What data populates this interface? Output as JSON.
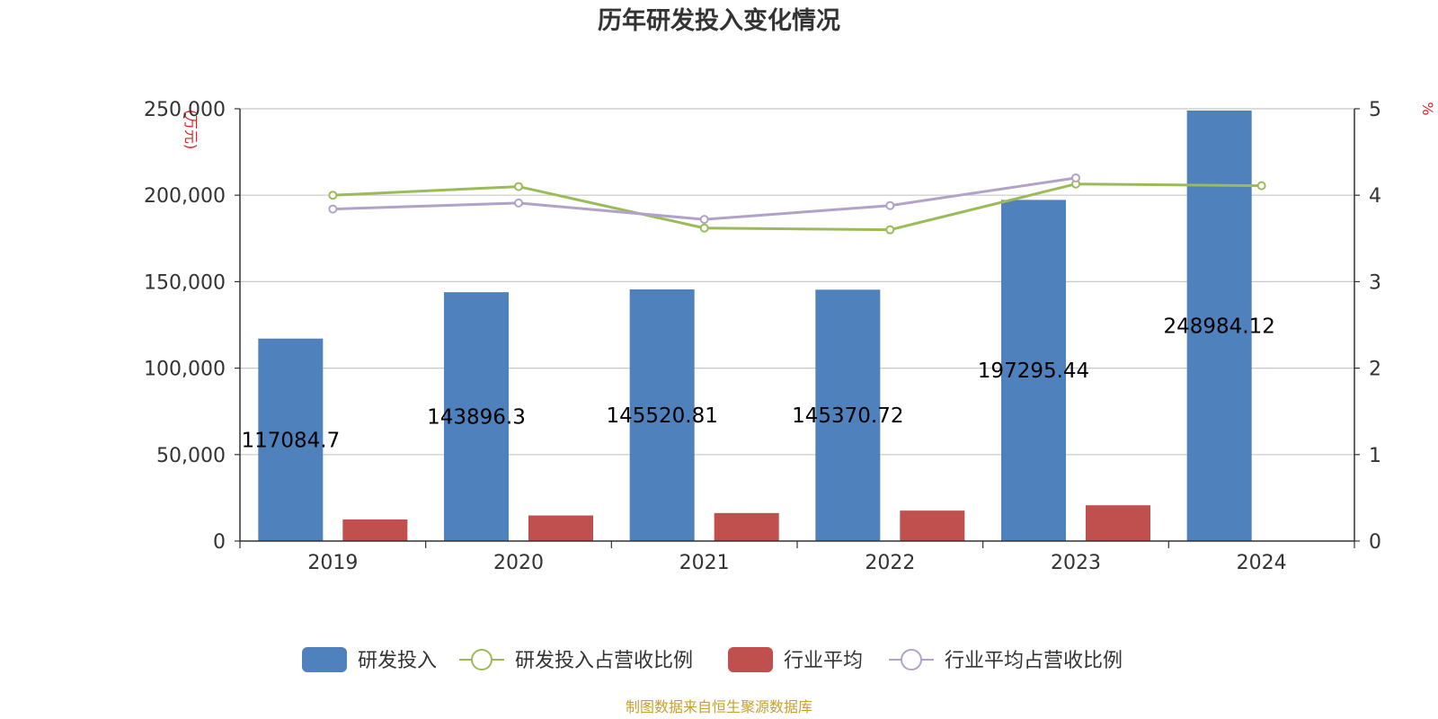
{
  "chart_data": {
    "type": "bar",
    "title": "历年研发投入变化情况",
    "y_left_unit_label": "(万元)",
    "y_right_unit_label": "%",
    "categories": [
      "2019",
      "2020",
      "2021",
      "2022",
      "2023",
      "2024"
    ],
    "y_left_ticks": [
      "0",
      "50,000",
      "100,000",
      "150,000",
      "200,000",
      "250,000"
    ],
    "y_right_ticks": [
      "0",
      "1",
      "2",
      "3",
      "4",
      "5"
    ],
    "ylim_left": [
      0,
      250000
    ],
    "ylim_right": [
      0,
      5
    ],
    "grid": true,
    "legend_position": "bottom",
    "source": "制图数据来自恒生聚源数据库",
    "series": [
      {
        "name": "研发投入",
        "kind": "bar",
        "axis": "left",
        "color": "#4f81bd",
        "values": [
          117084.7,
          143896.3,
          145520.81,
          145370.72,
          197295.44,
          248984.12
        ],
        "labels": [
          "117084.7",
          "143896.3",
          "145520.81",
          "145370.72",
          "197295.44",
          "248984.12"
        ]
      },
      {
        "name": "研发投入占营收比例",
        "kind": "line",
        "axis": "right",
        "color": "#9bbb59",
        "values": [
          4.0,
          4.1,
          3.62,
          3.6,
          4.13,
          4.11
        ]
      },
      {
        "name": "行业平均",
        "kind": "bar",
        "axis": "left",
        "color": "#c0504d",
        "values": [
          12500,
          14800,
          16200,
          17600,
          20700,
          null
        ]
      },
      {
        "name": "行业平均占营收比例",
        "kind": "line",
        "axis": "right",
        "color": "#b3a2c7",
        "values": [
          3.84,
          3.91,
          3.72,
          3.88,
          4.2,
          null
        ]
      }
    ]
  }
}
